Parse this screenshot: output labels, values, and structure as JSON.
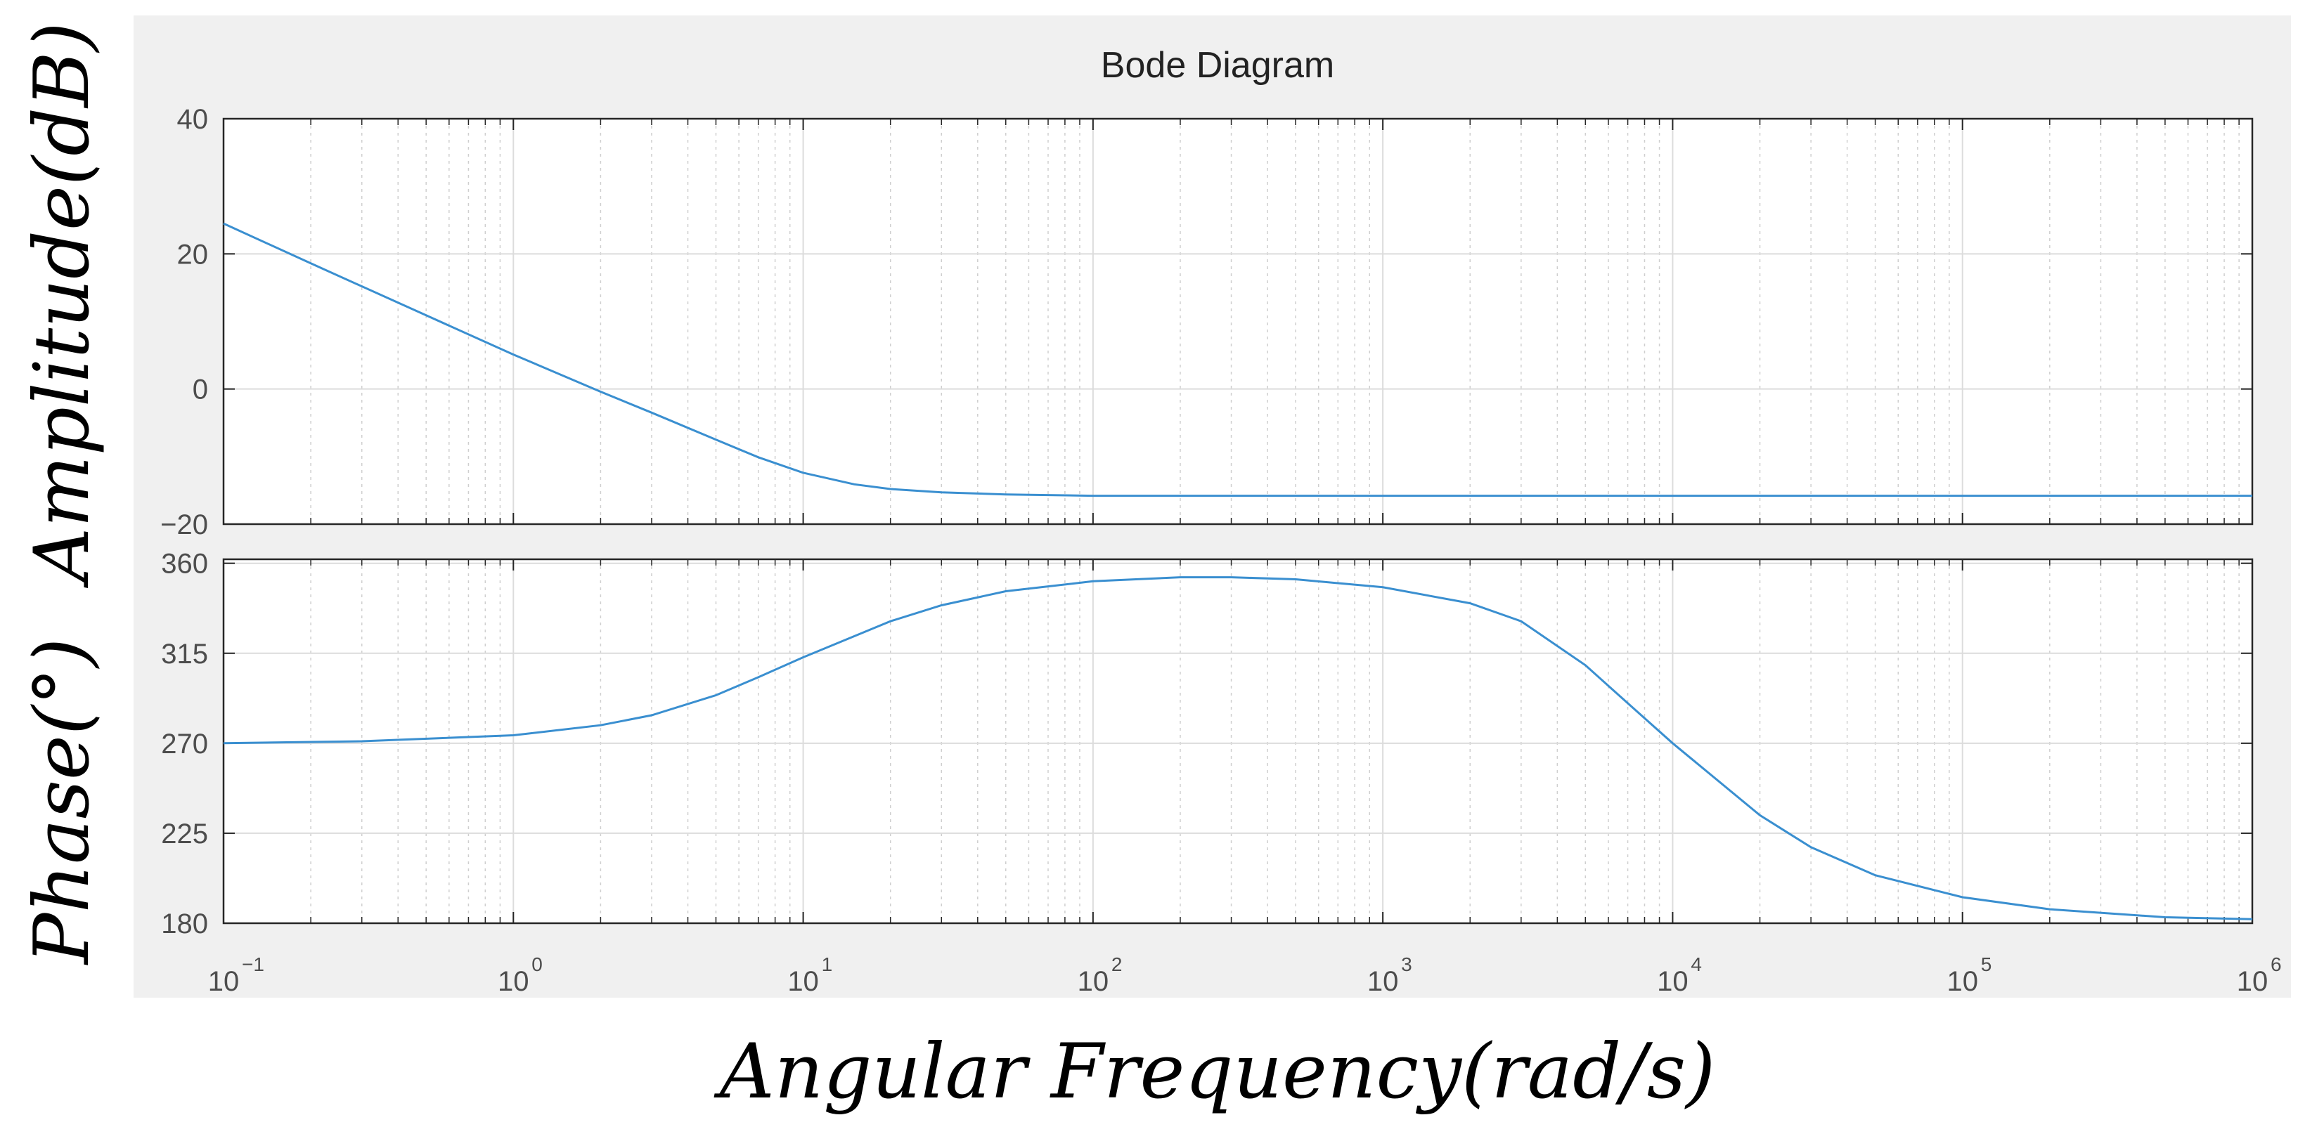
{
  "chart_data": {
    "type": "line",
    "title": "Bode Diagram",
    "xlabel": "Angular Frequency(rad/s)",
    "x_scale": "log",
    "xlim": [
      0.1,
      1000000
    ],
    "x_ticks": [
      {
        "value": 0.1,
        "base": "10",
        "exp": "-1"
      },
      {
        "value": 1,
        "base": "10",
        "exp": "0"
      },
      {
        "value": 10,
        "base": "10",
        "exp": "1"
      },
      {
        "value": 100,
        "base": "10",
        "exp": "2"
      },
      {
        "value": 1000,
        "base": "10",
        "exp": "3"
      },
      {
        "value": 10000,
        "base": "10",
        "exp": "4"
      },
      {
        "value": 100000,
        "base": "10",
        "exp": "5"
      },
      {
        "value": 1000000,
        "base": "10",
        "exp": "6"
      }
    ],
    "grid": true,
    "colors": {
      "line": "#3a8fd0",
      "figure_background": "#f0f0f0",
      "axes_background": "#ffffff",
      "grid": "#dcdcdc"
    },
    "panels": [
      {
        "ylabel": "Amplitude(dB)",
        "ylim": [
          -20,
          40
        ],
        "y_ticks": [
          "-20",
          "0",
          "20",
          "40"
        ],
        "series": [
          {
            "x": [
              0.1,
              0.2,
              0.5,
              1,
              2,
              3,
              5,
              7,
              10,
              15,
              20,
              30,
              50,
              100,
              1000,
              10000,
              100000,
              1000000
            ],
            "y": [
              24.5,
              18.6,
              10.9,
              5.1,
              -0.4,
              -3.5,
              -7.5,
              -10.1,
              -12.4,
              -14.1,
              -14.8,
              -15.3,
              -15.6,
              -15.8,
              -15.8,
              -15.8,
              -15.8,
              -15.8
            ]
          }
        ]
      },
      {
        "ylabel": "Phase(°)",
        "ylim": [
          180,
          362
        ],
        "y_ticks": [
          "180",
          "225",
          "270",
          "315",
          "360"
        ],
        "series": [
          {
            "x": [
              0.1,
              0.3,
              1,
              2,
              3,
              5,
              7,
              10,
              20,
              30,
              50,
              100,
              200,
              300,
              500,
              1000,
              2000,
              3000,
              5000,
              7000,
              10000,
              20000,
              30000,
              50000,
              100000,
              200000,
              500000,
              1000000
            ],
            "y": [
              270,
              271,
              274,
              279,
              284,
              294,
              303,
              313,
              331,
              339,
              346,
              351,
              353,
              353,
              352,
              348,
              340,
              331,
              309,
              290,
              270,
              234,
              218,
              204,
              193,
              187,
              183,
              182
            ]
          }
        ]
      }
    ]
  }
}
